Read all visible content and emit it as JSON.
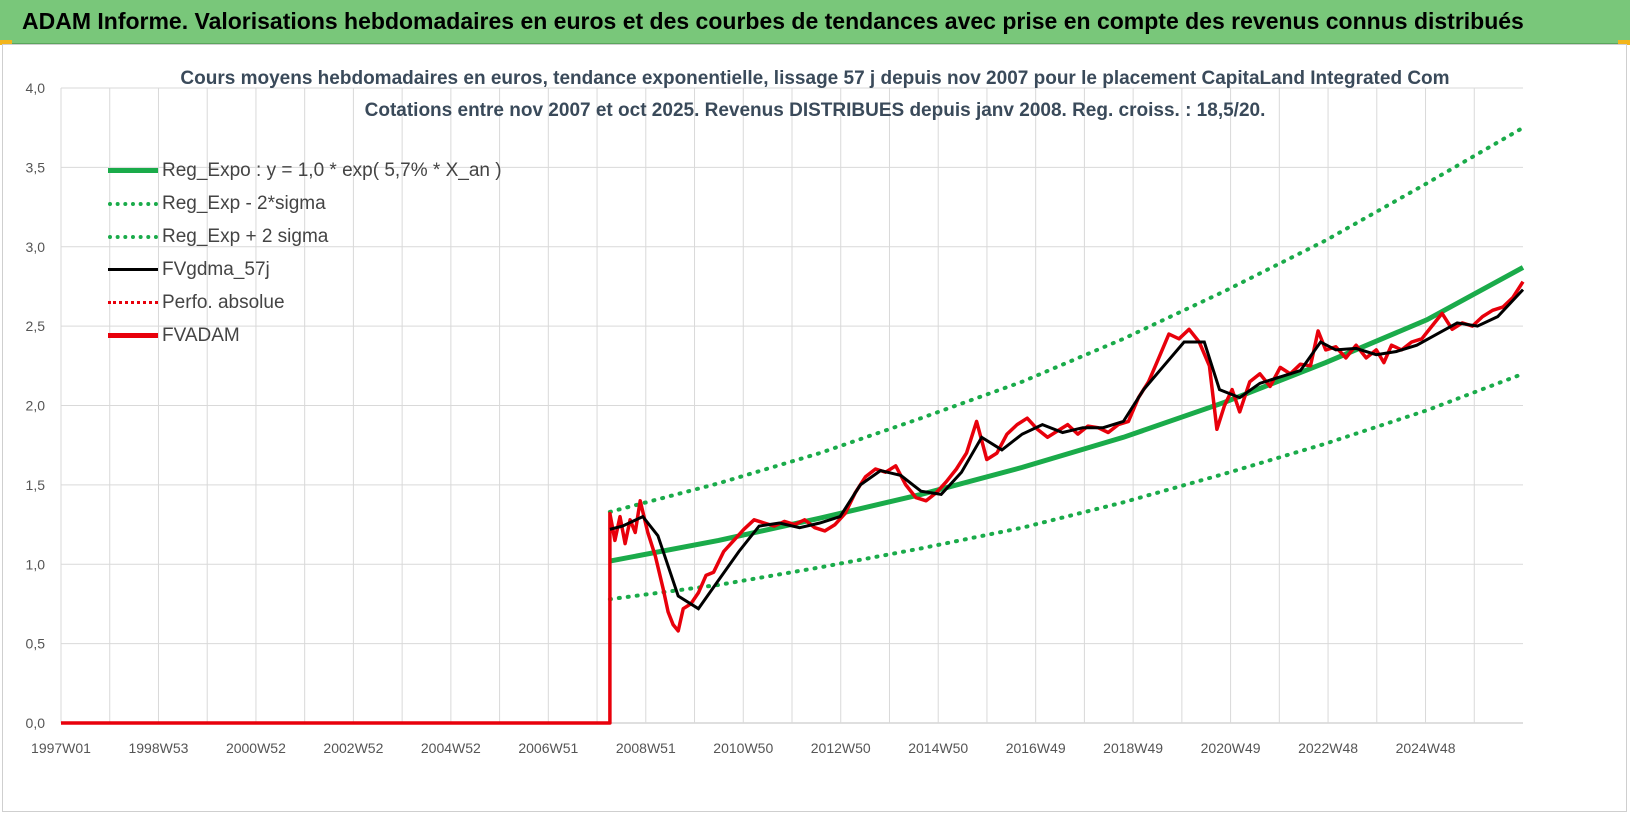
{
  "header": {
    "title": "ADAM Informe. Valorisations hebdomadaires en euros et des courbes de tendances avec prise en compte des revenus connus distribués"
  },
  "chart_data": {
    "type": "line",
    "title_line1": "Cours moyens hebdomadaires en euros, tendance exponentielle, lissage 57 j depuis nov 2007  pour le placement CapitaLand Integrated Com",
    "title_line2": "Cotations entre nov 2007 et oct 2025. Revenus DISTRIBUES depuis janv 2008. Reg. croiss. : 18,5/20.",
    "x_tick_labels": [
      "1997W01",
      "1998W53",
      "2000W52",
      "2002W52",
      "2004W52",
      "2006W51",
      "2008W51",
      "2010W50",
      "2012W50",
      "2014W50",
      "2016W49",
      "2018W49",
      "2020W49",
      "2022W48",
      "2024W48"
    ],
    "x_range": [
      1997.0,
      2025.9
    ],
    "ylim": [
      0,
      4
    ],
    "y_ticks": [
      "0,0",
      "0,5",
      "1,0",
      "1,5",
      "2,0",
      "2,5",
      "3,0",
      "3,5",
      "4,0"
    ],
    "grid": true,
    "legend_position": "top-left",
    "colors": {
      "green": "#1aab4a",
      "black": "#000000",
      "red": "#e8000b",
      "grid": "#d9d9d9",
      "axis_text": "#555555"
    },
    "series": [
      {
        "name": "Reg_Expo : y = 1,0 * exp( 5,7% *  X_an )",
        "style": "solid-green",
        "x": [
          2007.85,
          2010,
          2012,
          2014,
          2016,
          2018,
          2020,
          2022,
          2024,
          2025.9
        ],
        "y": [
          1.02,
          1.15,
          1.29,
          1.44,
          1.61,
          1.8,
          2.02,
          2.27,
          2.54,
          2.87
        ]
      },
      {
        "name": "Reg_Exp - 2*sigma",
        "style": "dotted-green",
        "x": [
          2007.85,
          2010,
          2012,
          2014,
          2016,
          2018,
          2020,
          2022,
          2024,
          2025.9
        ],
        "y": [
          0.78,
          0.87,
          0.98,
          1.1,
          1.23,
          1.39,
          1.57,
          1.76,
          1.97,
          2.2
        ]
      },
      {
        "name": "Reg_Exp + 2 sigma",
        "style": "dotted-green",
        "x": [
          2007.85,
          2010,
          2012,
          2014,
          2016,
          2018,
          2020,
          2022,
          2024,
          2025.9
        ],
        "y": [
          1.33,
          1.51,
          1.7,
          1.92,
          2.15,
          2.42,
          2.72,
          3.04,
          3.4,
          3.75
        ]
      },
      {
        "name": "FVgdma_57j",
        "style": "solid-black",
        "x": [
          2007.85,
          2008.1,
          2008.5,
          2008.8,
          2009.2,
          2009.6,
          2010.0,
          2010.4,
          2010.8,
          2011.2,
          2011.6,
          2012.0,
          2012.4,
          2012.8,
          2013.2,
          2013.6,
          2014.0,
          2014.4,
          2014.8,
          2015.2,
          2015.6,
          2016.0,
          2016.4,
          2016.8,
          2017.2,
          2017.6,
          2018.0,
          2018.4,
          2018.8,
          2019.2,
          2019.6,
          2019.9,
          2020.3,
          2020.7,
          2021.1,
          2021.5,
          2021.9,
          2022.2,
          2022.6,
          2023.0,
          2023.4,
          2023.8,
          2024.2,
          2024.6,
          2025.0,
          2025.4,
          2025.9
        ],
        "y": [
          1.22,
          1.24,
          1.3,
          1.18,
          0.8,
          0.72,
          0.9,
          1.08,
          1.24,
          1.26,
          1.23,
          1.26,
          1.3,
          1.5,
          1.59,
          1.56,
          1.46,
          1.44,
          1.58,
          1.8,
          1.72,
          1.82,
          1.88,
          1.83,
          1.86,
          1.86,
          1.9,
          2.1,
          2.25,
          2.4,
          2.4,
          2.1,
          2.05,
          2.14,
          2.18,
          2.22,
          2.4,
          2.35,
          2.36,
          2.32,
          2.34,
          2.38,
          2.45,
          2.52,
          2.5,
          2.56,
          2.73
        ]
      },
      {
        "name": "Perfo. absolue",
        "style": "dotted-red",
        "x": [],
        "y": []
      },
      {
        "name": "FVADAM",
        "style": "solid-red",
        "x": [
          1997.0,
          2007.85,
          2007.85,
          2007.95,
          2008.05,
          2008.15,
          2008.25,
          2008.35,
          2008.45,
          2008.6,
          2008.75,
          2008.9,
          2009.0,
          2009.1,
          2009.2,
          2009.3,
          2009.45,
          2009.6,
          2009.75,
          2009.9,
          2010.1,
          2010.3,
          2010.5,
          2010.7,
          2010.9,
          2011.1,
          2011.3,
          2011.5,
          2011.7,
          2011.9,
          2012.1,
          2012.3,
          2012.5,
          2012.7,
          2012.9,
          2013.1,
          2013.3,
          2013.5,
          2013.7,
          2013.9,
          2014.1,
          2014.3,
          2014.5,
          2014.7,
          2014.9,
          2015.1,
          2015.3,
          2015.5,
          2015.7,
          2015.9,
          2016.1,
          2016.3,
          2016.5,
          2016.7,
          2016.9,
          2017.1,
          2017.3,
          2017.5,
          2017.7,
          2017.9,
          2018.1,
          2018.3,
          2018.5,
          2018.7,
          2018.9,
          2019.1,
          2019.3,
          2019.5,
          2019.7,
          2019.85,
          2020.0,
          2020.15,
          2020.3,
          2020.5,
          2020.7,
          2020.9,
          2021.1,
          2021.3,
          2021.5,
          2021.7,
          2021.85,
          2022.0,
          2022.2,
          2022.4,
          2022.6,
          2022.8,
          2023.0,
          2023.15,
          2023.3,
          2023.5,
          2023.7,
          2023.9,
          2024.1,
          2024.3,
          2024.5,
          2024.7,
          2024.9,
          2025.1,
          2025.3,
          2025.5,
          2025.7,
          2025.9
        ],
        "y": [
          0.0,
          0.0,
          1.32,
          1.15,
          1.3,
          1.13,
          1.28,
          1.2,
          1.4,
          1.2,
          1.05,
          0.85,
          0.7,
          0.62,
          0.58,
          0.72,
          0.75,
          0.82,
          0.93,
          0.95,
          1.08,
          1.15,
          1.22,
          1.28,
          1.26,
          1.24,
          1.27,
          1.25,
          1.28,
          1.23,
          1.21,
          1.25,
          1.32,
          1.45,
          1.55,
          1.6,
          1.58,
          1.62,
          1.5,
          1.42,
          1.4,
          1.45,
          1.52,
          1.6,
          1.7,
          1.9,
          1.66,
          1.7,
          1.82,
          1.88,
          1.92,
          1.85,
          1.8,
          1.84,
          1.88,
          1.82,
          1.87,
          1.86,
          1.83,
          1.88,
          1.9,
          2.05,
          2.15,
          2.3,
          2.45,
          2.42,
          2.48,
          2.4,
          2.25,
          1.85,
          2.0,
          2.1,
          1.96,
          2.15,
          2.2,
          2.12,
          2.24,
          2.2,
          2.26,
          2.25,
          2.47,
          2.35,
          2.37,
          2.3,
          2.38,
          2.3,
          2.35,
          2.27,
          2.38,
          2.35,
          2.4,
          2.42,
          2.5,
          2.58,
          2.48,
          2.52,
          2.5,
          2.56,
          2.6,
          2.62,
          2.68,
          2.78
        ]
      }
    ]
  }
}
